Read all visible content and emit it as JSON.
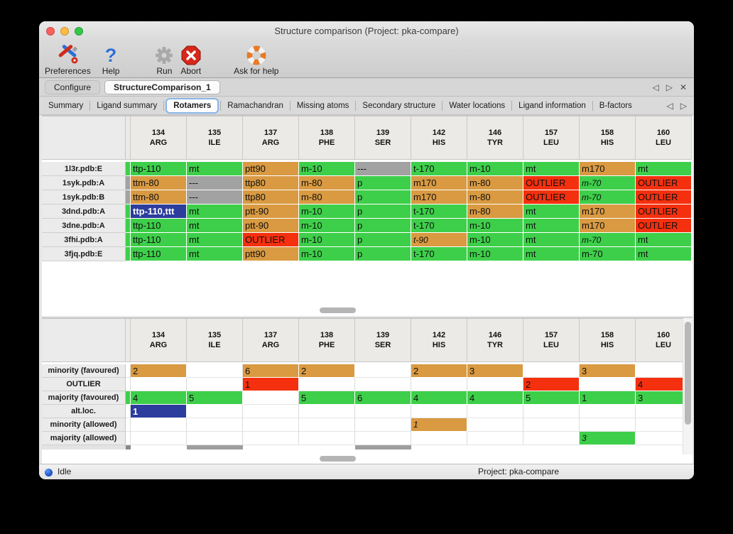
{
  "colors": {
    "green": "#3ecf4a",
    "orange": "#d99a42",
    "red": "#f5300f",
    "gray": "#a2a2a2",
    "blue": "#2c3d9e",
    "darkgray": "#8a8a8a",
    "lightgray": "#9e9e9e"
  },
  "titlebar": {
    "title": "Structure comparison (Project: pka-compare)"
  },
  "toolbar": {
    "items": [
      {
        "id": "preferences",
        "label": "Preferences",
        "icon": "tools-icon"
      },
      {
        "id": "help",
        "label": "Help",
        "icon": "question-mark-icon"
      },
      {
        "id": "run",
        "label": "Run",
        "icon": "gear-icon"
      },
      {
        "id": "abort",
        "label": "Abort",
        "icon": "stop-x-icon"
      },
      {
        "id": "ask-for-help",
        "label": "Ask for help",
        "icon": "lifebuoy-icon"
      }
    ]
  },
  "tabs": {
    "active": 1,
    "items": [
      "Configure",
      "StructureComparison_1"
    ]
  },
  "subtabs": {
    "active": 2,
    "items": [
      "Summary",
      "Ligand summary",
      "Rotamers",
      "Ramachandran",
      "Missing atoms",
      "Secondary structure",
      "Water locations",
      "Ligand information",
      "B-factors"
    ]
  },
  "columns": [
    {
      "num": "134",
      "res": "ARG"
    },
    {
      "num": "135",
      "res": "ILE"
    },
    {
      "num": "137",
      "res": "ARG"
    },
    {
      "num": "138",
      "res": "PHE"
    },
    {
      "num": "139",
      "res": "SER"
    },
    {
      "num": "142",
      "res": "HIS"
    },
    {
      "num": "146",
      "res": "TYR"
    },
    {
      "num": "157",
      "res": "LEU"
    },
    {
      "num": "158",
      "res": "HIS"
    },
    {
      "num": "160",
      "res": "LEU"
    }
  ],
  "top_table": {
    "rows": [
      {
        "label": "1l3r.pdb:E",
        "edge": "green",
        "cells": [
          {
            "t": "ttp-110",
            "c": "green"
          },
          {
            "t": "mt",
            "c": "green"
          },
          {
            "t": "ptt90",
            "c": "orange"
          },
          {
            "t": "m-10",
            "c": "green"
          },
          {
            "t": "---",
            "c": "gray"
          },
          {
            "t": "t-170",
            "c": "green"
          },
          {
            "t": "m-10",
            "c": "green"
          },
          {
            "t": "mt",
            "c": "green"
          },
          {
            "t": "m170",
            "c": "orange"
          },
          {
            "t": "mt",
            "c": "green"
          }
        ]
      },
      {
        "label": "1syk.pdb:A",
        "edge": "gray",
        "cells": [
          {
            "t": "ttm-80",
            "c": "orange"
          },
          {
            "t": "---",
            "c": "gray"
          },
          {
            "t": "ttp80",
            "c": "orange"
          },
          {
            "t": "m-80",
            "c": "orange"
          },
          {
            "t": "p",
            "c": "green"
          },
          {
            "t": "m170",
            "c": "orange"
          },
          {
            "t": "m-80",
            "c": "orange"
          },
          {
            "t": "OUTLIER",
            "c": "red"
          },
          {
            "t": "m-70",
            "c": "green",
            "i": true
          },
          {
            "t": "OUTLIER",
            "c": "red"
          }
        ]
      },
      {
        "label": "1syk.pdb:B",
        "edge": "gray",
        "cells": [
          {
            "t": "ttm-80",
            "c": "orange"
          },
          {
            "t": "---",
            "c": "gray"
          },
          {
            "t": "ttp80",
            "c": "orange"
          },
          {
            "t": "m-80",
            "c": "orange"
          },
          {
            "t": "p",
            "c": "green"
          },
          {
            "t": "m170",
            "c": "orange"
          },
          {
            "t": "m-80",
            "c": "orange"
          },
          {
            "t": "OUTLIER",
            "c": "red"
          },
          {
            "t": "m-70",
            "c": "green",
            "i": true
          },
          {
            "t": "OUTLIER",
            "c": "red"
          }
        ]
      },
      {
        "label": "3dnd.pdb:A",
        "edge": "green",
        "cells": [
          {
            "t": "ttp-110,ttt",
            "c": "blue",
            "sel": true
          },
          {
            "t": "mt",
            "c": "green"
          },
          {
            "t": "ptt-90",
            "c": "orange"
          },
          {
            "t": "m-10",
            "c": "green"
          },
          {
            "t": "p",
            "c": "green"
          },
          {
            "t": "t-170",
            "c": "green"
          },
          {
            "t": "m-80",
            "c": "orange"
          },
          {
            "t": "mt",
            "c": "green"
          },
          {
            "t": "m170",
            "c": "orange"
          },
          {
            "t": "OUTLIER",
            "c": "red"
          }
        ]
      },
      {
        "label": "3dne.pdb:A",
        "edge": "green",
        "cells": [
          {
            "t": "ttp-110",
            "c": "green"
          },
          {
            "t": "mt",
            "c": "green"
          },
          {
            "t": "ptt-90",
            "c": "orange"
          },
          {
            "t": "m-10",
            "c": "green"
          },
          {
            "t": "p",
            "c": "green"
          },
          {
            "t": "t-170",
            "c": "green"
          },
          {
            "t": "m-10",
            "c": "green"
          },
          {
            "t": "mt",
            "c": "green"
          },
          {
            "t": "m170",
            "c": "orange"
          },
          {
            "t": "OUTLIER",
            "c": "red"
          }
        ]
      },
      {
        "label": "3fhi.pdb:A",
        "edge": "green",
        "cells": [
          {
            "t": "ttp-110",
            "c": "green"
          },
          {
            "t": "mt",
            "c": "green"
          },
          {
            "t": "OUTLIER",
            "c": "red"
          },
          {
            "t": "m-10",
            "c": "green"
          },
          {
            "t": "p",
            "c": "green"
          },
          {
            "t": "t-90",
            "c": "orange",
            "i": true
          },
          {
            "t": "m-10",
            "c": "green"
          },
          {
            "t": "mt",
            "c": "green"
          },
          {
            "t": "m-70",
            "c": "green",
            "i": true
          },
          {
            "t": "mt",
            "c": "green"
          }
        ]
      },
      {
        "label": "3fjq.pdb:E",
        "edge": "green",
        "cells": [
          {
            "t": "ttp-110",
            "c": "green"
          },
          {
            "t": "mt",
            "c": "green"
          },
          {
            "t": "ptt90",
            "c": "orange"
          },
          {
            "t": "m-10",
            "c": "green"
          },
          {
            "t": "p",
            "c": "green"
          },
          {
            "t": "t-170",
            "c": "green"
          },
          {
            "t": "m-10",
            "c": "green"
          },
          {
            "t": "mt",
            "c": "green"
          },
          {
            "t": "m-70",
            "c": "green"
          },
          {
            "t": "mt",
            "c": "green"
          }
        ]
      }
    ]
  },
  "bottom_table": {
    "rows": [
      {
        "label": "minority (favoured)",
        "edge": null,
        "cells": [
          {
            "t": "2",
            "c": "orange"
          },
          null,
          {
            "t": "6",
            "c": "orange"
          },
          {
            "t": "2",
            "c": "orange"
          },
          null,
          {
            "t": "2",
            "c": "orange"
          },
          {
            "t": "3",
            "c": "orange"
          },
          null,
          {
            "t": "3",
            "c": "orange"
          },
          null
        ]
      },
      {
        "label": "OUTLIER",
        "edge": null,
        "cells": [
          null,
          null,
          {
            "t": "1",
            "c": "red"
          },
          null,
          null,
          null,
          null,
          {
            "t": "2",
            "c": "red"
          },
          null,
          {
            "t": "4",
            "c": "red"
          }
        ]
      },
      {
        "label": "majority (favoured)",
        "edge": "green",
        "cells": [
          {
            "t": "4",
            "c": "green"
          },
          {
            "t": "5",
            "c": "green"
          },
          null,
          {
            "t": "5",
            "c": "green"
          },
          {
            "t": "6",
            "c": "green"
          },
          {
            "t": "4",
            "c": "green"
          },
          {
            "t": "4",
            "c": "green"
          },
          {
            "t": "5",
            "c": "green"
          },
          {
            "t": "1",
            "c": "green"
          },
          {
            "t": "3",
            "c": "green"
          }
        ]
      },
      {
        "label": "alt.loc.",
        "edge": null,
        "cells": [
          {
            "t": "1",
            "c": "blue",
            "sel": true
          },
          null,
          null,
          null,
          null,
          null,
          null,
          null,
          null,
          null
        ]
      },
      {
        "label": "minority (allowed)",
        "edge": null,
        "cells": [
          null,
          null,
          null,
          null,
          null,
          {
            "t": "1",
            "c": "orange",
            "i": true
          },
          null,
          null,
          null,
          null
        ]
      },
      {
        "label": "majority (allowed)",
        "edge": null,
        "cells": [
          null,
          null,
          null,
          null,
          null,
          null,
          null,
          null,
          {
            "t": "3",
            "c": "green",
            "i": true
          },
          null
        ]
      }
    ],
    "partial_row": {
      "edge": "darkgray",
      "gray_cols": [
        1,
        4
      ]
    }
  },
  "statusbar": {
    "status": "Idle",
    "project": "Project: pka-compare"
  }
}
